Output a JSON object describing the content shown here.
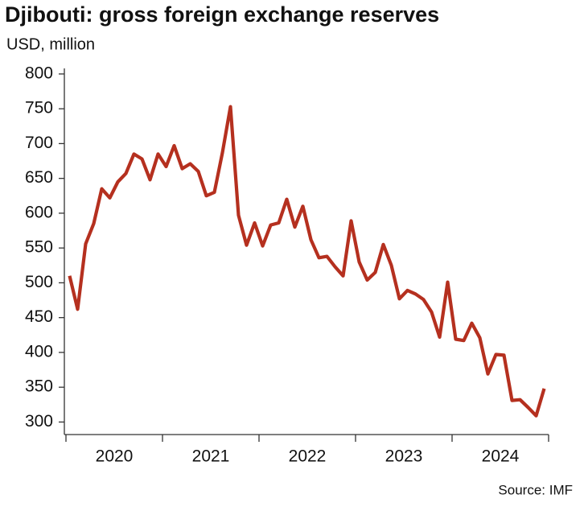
{
  "chart_data": {
    "type": "line",
    "title": "Djibouti: gross foreign exchange reserves",
    "y_label": "USD, million",
    "source": "Source: IMF",
    "categories": [
      "2020",
      "2021",
      "2022",
      "2023",
      "2024"
    ],
    "values": [
      [
        510,
        462,
        556,
        585,
        635,
        622,
        645,
        657,
        685,
        678,
        648,
        685
      ],
      [
        667,
        697,
        664,
        671,
        660,
        625,
        630,
        687,
        753,
        597,
        554,
        586
      ],
      [
        553,
        583,
        586,
        620,
        580,
        610,
        562,
        536,
        538,
        523,
        510,
        589
      ],
      [
        530,
        504,
        515,
        555,
        525,
        477,
        489,
        484,
        476,
        458,
        422,
        501
      ],
      [
        419,
        417,
        442,
        421,
        369,
        397,
        396,
        331,
        332,
        321,
        309,
        348
      ]
    ],
    "color": "#b5301f",
    "ylim": [
      282,
      808
    ],
    "yticks": [
      300,
      350,
      400,
      450,
      500,
      550,
      600,
      650,
      700,
      750,
      800
    ]
  }
}
